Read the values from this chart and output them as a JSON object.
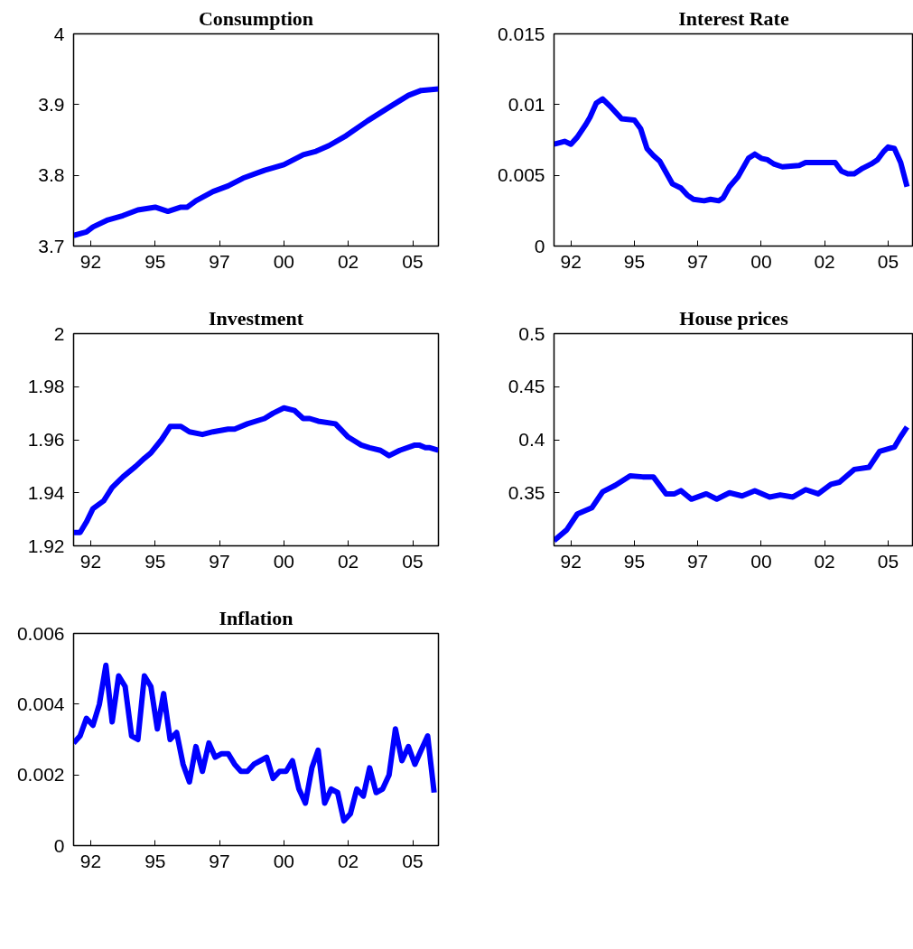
{
  "chart_data": [
    {
      "type": "line",
      "title": "Consumption",
      "xlim": [
        "1991-11",
        "2006-01"
      ],
      "ylim": [
        3.7,
        4
      ],
      "yticks": [
        3.7,
        3.8,
        3.9,
        4
      ],
      "xticks": [
        {
          "value": "1992-07",
          "label": "92"
        },
        {
          "value": "1995-01",
          "label": "95"
        },
        {
          "value": "1997-07",
          "label": "97"
        },
        {
          "value": "2000-01",
          "label": "00"
        },
        {
          "value": "2002-07",
          "label": "02"
        },
        {
          "value": "2005-01",
          "label": "05"
        }
      ],
      "x": [
        "1991-11",
        "1992-05",
        "1992-08",
        "1993-03",
        "1993-10",
        "1994-05",
        "1995-01",
        "1995-07",
        "1996-01",
        "1996-04",
        "1996-08",
        "1997-04",
        "1997-11",
        "1998-06",
        "1999-04",
        "2000-01",
        "2000-10",
        "2001-04",
        "2001-10",
        "2002-06",
        "2003-04",
        "2004-03",
        "2004-11",
        "2005-05",
        "2006-01"
      ],
      "series": [
        {
          "color": "#0000ff",
          "values": [
            3.715,
            3.72,
            3.727,
            3.737,
            3.743,
            3.751,
            3.755,
            3.749,
            3.755,
            3.755,
            3.764,
            3.777,
            3.785,
            3.796,
            3.807,
            3.815,
            3.829,
            3.834,
            3.842,
            3.856,
            3.877,
            3.898,
            3.913,
            3.92,
            3.922
          ]
        }
      ]
    },
    {
      "type": "line",
      "title": "Interest Rate",
      "xlim": [
        "1991-11",
        "2006-01"
      ],
      "ylim": [
        0,
        0.015
      ],
      "yticks": [
        0,
        0.005,
        0.01,
        0.015
      ],
      "xticks": [
        {
          "value": "1992-07",
          "label": "92"
        },
        {
          "value": "1995-01",
          "label": "95"
        },
        {
          "value": "1997-07",
          "label": "97"
        },
        {
          "value": "2000-01",
          "label": "00"
        },
        {
          "value": "2002-07",
          "label": "02"
        },
        {
          "value": "2005-01",
          "label": "05"
        }
      ],
      "x": [
        "1991-11",
        "1992-04",
        "1992-07",
        "1992-10",
        "1993-02",
        "1993-04",
        "1993-07",
        "1993-10",
        "1994-02",
        "1994-07",
        "1995-01",
        "1995-04",
        "1995-07",
        "1995-10",
        "1996-01",
        "1996-07",
        "1996-11",
        "1997-02",
        "1997-05",
        "1997-10",
        "1998-01",
        "1998-05",
        "1998-07",
        "1998-10",
        "1999-02",
        "1999-07",
        "1999-10",
        "2000-01",
        "2000-04",
        "2000-07",
        "2000-11",
        "2001-07",
        "2001-10",
        "2002-12",
        "2003-03",
        "2003-06",
        "2003-09",
        "2004-01",
        "2004-05",
        "2004-08",
        "2004-11",
        "2005-01",
        "2005-04",
        "2005-07",
        "2005-10"
      ],
      "series": [
        {
          "color": "#0000ff",
          "values": [
            0.0072,
            0.0074,
            0.0072,
            0.0077,
            0.0086,
            0.0091,
            0.0101,
            0.0104,
            0.0098,
            0.009,
            0.0089,
            0.0083,
            0.0069,
            0.0064,
            0.006,
            0.0044,
            0.0041,
            0.0036,
            0.0033,
            0.0032,
            0.0033,
            0.0032,
            0.0034,
            0.0042,
            0.0049,
            0.0062,
            0.0065,
            0.0062,
            0.0061,
            0.0058,
            0.0056,
            0.0057,
            0.0059,
            0.0059,
            0.0053,
            0.0051,
            0.0051,
            0.0055,
            0.0058,
            0.0061,
            0.0067,
            0.007,
            0.0069,
            0.0059,
            0.0042
          ]
        }
      ]
    },
    {
      "type": "line",
      "title": "Investment",
      "xlim": [
        "1991-11",
        "2006-01"
      ],
      "ylim": [
        1.92,
        2
      ],
      "yticks": [
        1.92,
        1.94,
        1.96,
        1.98,
        2
      ],
      "xticks": [
        {
          "value": "1992-07",
          "label": "92"
        },
        {
          "value": "1995-01",
          "label": "95"
        },
        {
          "value": "1997-07",
          "label": "97"
        },
        {
          "value": "2000-01",
          "label": "00"
        },
        {
          "value": "2002-07",
          "label": "02"
        },
        {
          "value": "2005-01",
          "label": "05"
        }
      ],
      "x": [
        "1991-11",
        "1992-02",
        "1992-05",
        "1992-08",
        "1993-01",
        "1993-05",
        "1993-10",
        "1994-04",
        "1994-08",
        "1994-11",
        "1995-04",
        "1995-08",
        "1996-01",
        "1996-05",
        "1996-11",
        "1997-04",
        "1997-11",
        "1998-02",
        "1998-08",
        "1999-04",
        "1999-08",
        "2000-01",
        "2000-06",
        "2000-10",
        "2001-01",
        "2001-05",
        "2002-01",
        "2002-07",
        "2003-01",
        "2003-05",
        "2003-10",
        "2004-02",
        "2004-07",
        "2005-02",
        "2005-04",
        "2005-07",
        "2005-09",
        "2006-01"
      ],
      "series": [
        {
          "color": "#0000ff",
          "values": [
            1.925,
            1.925,
            1.929,
            1.934,
            1.937,
            1.942,
            1.946,
            1.95,
            1.953,
            1.955,
            1.96,
            1.965,
            1.965,
            1.963,
            1.962,
            1.963,
            1.964,
            1.964,
            1.966,
            1.968,
            1.97,
            1.972,
            1.971,
            1.968,
            1.968,
            1.967,
            1.966,
            1.961,
            1.958,
            1.957,
            1.956,
            1.954,
            1.956,
            1.958,
            1.958,
            1.957,
            1.957,
            1.956
          ]
        }
      ]
    },
    {
      "type": "line",
      "title": "House prices",
      "xlim": [
        "1991-11",
        "2006-01"
      ],
      "ylim": [
        0.3,
        0.5
      ],
      "yticks": [
        0.35,
        0.4,
        0.45,
        0.5
      ],
      "xticks": [
        {
          "value": "1992-07",
          "label": "92"
        },
        {
          "value": "1995-01",
          "label": "95"
        },
        {
          "value": "1997-07",
          "label": "97"
        },
        {
          "value": "2000-01",
          "label": "00"
        },
        {
          "value": "2002-07",
          "label": "02"
        },
        {
          "value": "2005-01",
          "label": "05"
        }
      ],
      "x": [
        "1991-11",
        "1992-05",
        "1992-10",
        "1993-05",
        "1993-10",
        "1994-04",
        "1994-11",
        "1995-05",
        "1995-10",
        "1996-04",
        "1996-08",
        "1996-11",
        "1997-04",
        "1997-11",
        "1998-04",
        "1998-10",
        "1999-04",
        "1999-10",
        "2000-05",
        "2000-10",
        "2001-04",
        "2001-10",
        "2002-04",
        "2002-10",
        "2003-02",
        "2003-09",
        "2004-04",
        "2004-09",
        "2005-04",
        "2005-07",
        "2005-10"
      ],
      "series": [
        {
          "color": "#0000ff",
          "values": [
            0.305,
            0.315,
            0.33,
            0.336,
            0.351,
            0.357,
            0.366,
            0.365,
            0.365,
            0.349,
            0.349,
            0.352,
            0.344,
            0.349,
            0.344,
            0.35,
            0.347,
            0.352,
            0.346,
            0.348,
            0.346,
            0.353,
            0.349,
            0.358,
            0.36,
            0.372,
            0.374,
            0.389,
            0.393,
            0.403,
            0.412
          ]
        }
      ]
    },
    {
      "type": "line",
      "title": "Inflation",
      "xlim": [
        "1991-11",
        "2006-01"
      ],
      "ylim": [
        0,
        0.006
      ],
      "yticks": [
        0,
        0.002,
        0.004,
        0.006
      ],
      "xticks": [
        {
          "value": "1992-07",
          "label": "92"
        },
        {
          "value": "1995-01",
          "label": "95"
        },
        {
          "value": "1997-07",
          "label": "97"
        },
        {
          "value": "2000-01",
          "label": "00"
        },
        {
          "value": "2002-07",
          "label": "02"
        },
        {
          "value": "2005-01",
          "label": "05"
        }
      ],
      "x": [
        "1991-11",
        "1992-02",
        "1992-05",
        "1992-08",
        "1992-11",
        "1993-02",
        "1993-05",
        "1993-08",
        "1993-11",
        "1994-02",
        "1994-05",
        "1994-08",
        "1994-11",
        "1995-02",
        "1995-05",
        "1995-08",
        "1995-11",
        "1996-02",
        "1996-05",
        "1996-08",
        "1996-11",
        "1997-02",
        "1997-05",
        "1997-08",
        "1997-11",
        "1998-02",
        "1998-05",
        "1998-08",
        "1998-11",
        "1999-02",
        "1999-05",
        "1999-08",
        "1999-11",
        "2000-02",
        "2000-05",
        "2000-08",
        "2000-11",
        "2001-02",
        "2001-05",
        "2001-08",
        "2001-11",
        "2002-02",
        "2002-05",
        "2002-08",
        "2002-11",
        "2003-02",
        "2003-05",
        "2003-08",
        "2003-11",
        "2004-02",
        "2004-05",
        "2004-08",
        "2004-11",
        "2005-02",
        "2005-05",
        "2005-08",
        "2005-11"
      ],
      "series": [
        {
          "color": "#0000ff",
          "values": [
            0.0029,
            0.0031,
            0.0036,
            0.0034,
            0.004,
            0.0051,
            0.0035,
            0.0048,
            0.0045,
            0.0031,
            0.003,
            0.0048,
            0.0045,
            0.0033,
            0.0043,
            0.003,
            0.0032,
            0.0023,
            0.0018,
            0.0028,
            0.0021,
            0.0029,
            0.0025,
            0.0026,
            0.0026,
            0.0023,
            0.0021,
            0.0021,
            0.0023,
            0.0024,
            0.0025,
            0.0019,
            0.0021,
            0.0021,
            0.0024,
            0.0016,
            0.0012,
            0.0022,
            0.0027,
            0.0012,
            0.0016,
            0.0015,
            0.0007,
            0.0009,
            0.0016,
            0.0014,
            0.0022,
            0.0015,
            0.0016,
            0.002,
            0.0033,
            0.0024,
            0.0028,
            0.0023,
            0.0027,
            0.0031,
            0.0015
          ]
        }
      ]
    }
  ]
}
